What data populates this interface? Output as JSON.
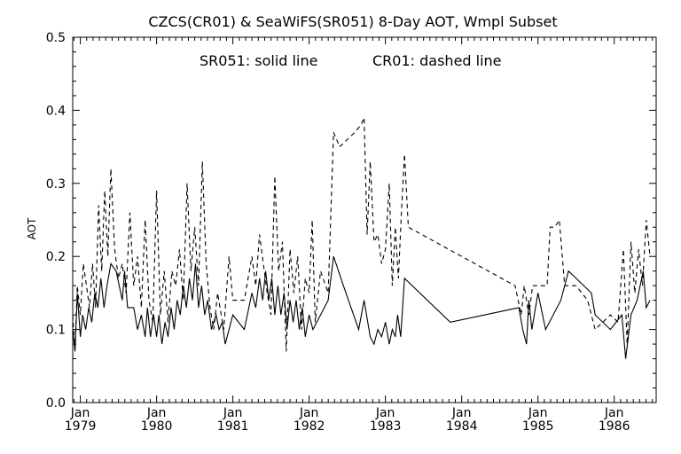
{
  "chart_data": {
    "type": "line",
    "title": "CZCS(CR01) & SeaWiFS(SR051) 8-Day AOT, Wmpl Subset",
    "annotation": {
      "solid": "SR051: solid line",
      "dashed": "CR01: dashed line"
    },
    "xlabel": "",
    "ylabel": "AOT",
    "xlim": [
      1978.9,
      1986.55
    ],
    "ylim": [
      0.0,
      0.5
    ],
    "grid": false,
    "x_ticks": [
      {
        "value": 1979.0,
        "month": "Jan",
        "year": "1979"
      },
      {
        "value": 1980.0,
        "month": "Jan",
        "year": "1980"
      },
      {
        "value": 1981.0,
        "month": "Jan",
        "year": "1981"
      },
      {
        "value": 1982.0,
        "month": "Jan",
        "year": "1982"
      },
      {
        "value": 1983.0,
        "month": "Jan",
        "year": "1983"
      },
      {
        "value": 1984.0,
        "month": "Jan",
        "year": "1984"
      },
      {
        "value": 1985.0,
        "month": "Jan",
        "year": "1985"
      },
      {
        "value": 1986.0,
        "month": "Jan",
        "year": "1986"
      }
    ],
    "y_ticks": [
      {
        "value": 0.0,
        "label": "0.0"
      },
      {
        "value": 0.1,
        "label": "0.1"
      },
      {
        "value": 0.2,
        "label": "0.2"
      },
      {
        "value": 0.3,
        "label": "0.3"
      },
      {
        "value": 0.4,
        "label": "0.4"
      },
      {
        "value": 0.5,
        "label": "0.5"
      }
    ],
    "series": [
      {
        "name": "SR051",
        "style": "solid",
        "color": "#000000",
        "points": [
          [
            1978.9,
            0.1
          ],
          [
            1978.93,
            0.07
          ],
          [
            1978.96,
            0.15
          ],
          [
            1979.0,
            0.09
          ],
          [
            1979.03,
            0.12
          ],
          [
            1979.07,
            0.1
          ],
          [
            1979.11,
            0.13
          ],
          [
            1979.15,
            0.11
          ],
          [
            1979.19,
            0.15
          ],
          [
            1979.23,
            0.13
          ],
          [
            1979.27,
            0.17
          ],
          [
            1979.31,
            0.13
          ],
          [
            1979.35,
            0.16
          ],
          [
            1979.4,
            0.19
          ],
          [
            1979.47,
            0.18
          ],
          [
            1979.55,
            0.14
          ],
          [
            1979.58,
            0.18
          ],
          [
            1979.62,
            0.13
          ],
          [
            1979.7,
            0.13
          ],
          [
            1979.75,
            0.1
          ],
          [
            1979.8,
            0.12
          ],
          [
            1979.85,
            0.09
          ],
          [
            1979.88,
            0.13
          ],
          [
            1979.92,
            0.09
          ],
          [
            1979.96,
            0.12
          ],
          [
            1980.0,
            0.09
          ],
          [
            1980.03,
            0.12
          ],
          [
            1980.07,
            0.08
          ],
          [
            1980.11,
            0.11
          ],
          [
            1980.15,
            0.09
          ],
          [
            1980.19,
            0.13
          ],
          [
            1980.23,
            0.1
          ],
          [
            1980.27,
            0.14
          ],
          [
            1980.31,
            0.12
          ],
          [
            1980.35,
            0.16
          ],
          [
            1980.39,
            0.13
          ],
          [
            1980.43,
            0.17
          ],
          [
            1980.47,
            0.14
          ],
          [
            1980.51,
            0.19
          ],
          [
            1980.55,
            0.13
          ],
          [
            1980.59,
            0.16
          ],
          [
            1980.63,
            0.12
          ],
          [
            1980.67,
            0.14
          ],
          [
            1980.72,
            0.1
          ],
          [
            1980.78,
            0.12
          ],
          [
            1980.82,
            0.1
          ],
          [
            1980.86,
            0.11
          ],
          [
            1980.9,
            0.08
          ],
          [
            1980.95,
            0.1
          ],
          [
            1981.0,
            0.12
          ],
          [
            1981.15,
            0.1
          ],
          [
            1981.25,
            0.15
          ],
          [
            1981.3,
            0.13
          ],
          [
            1981.35,
            0.17
          ],
          [
            1981.39,
            0.14
          ],
          [
            1981.43,
            0.18
          ],
          [
            1981.47,
            0.14
          ],
          [
            1981.51,
            0.17
          ],
          [
            1981.55,
            0.12
          ],
          [
            1981.59,
            0.16
          ],
          [
            1981.63,
            0.12
          ],
          [
            1981.67,
            0.15
          ],
          [
            1981.71,
            0.1
          ],
          [
            1981.75,
            0.14
          ],
          [
            1981.79,
            0.11
          ],
          [
            1981.83,
            0.14
          ],
          [
            1981.87,
            0.1
          ],
          [
            1981.91,
            0.13
          ],
          [
            1981.95,
            0.09
          ],
          [
            1982.0,
            0.12
          ],
          [
            1982.05,
            0.1
          ],
          [
            1982.15,
            0.12
          ],
          [
            1982.25,
            0.14
          ],
          [
            1982.32,
            0.2
          ],
          [
            1982.45,
            0.16
          ],
          [
            1982.55,
            0.13
          ],
          [
            1982.65,
            0.1
          ],
          [
            1982.72,
            0.14
          ],
          [
            1982.8,
            0.09
          ],
          [
            1982.85,
            0.08
          ],
          [
            1982.9,
            0.1
          ],
          [
            1982.95,
            0.09
          ],
          [
            1983.0,
            0.11
          ],
          [
            1983.05,
            0.08
          ],
          [
            1983.09,
            0.1
          ],
          [
            1983.13,
            0.09
          ],
          [
            1983.16,
            0.12
          ],
          [
            1983.2,
            0.09
          ],
          [
            1983.25,
            0.17
          ],
          [
            1983.85,
            0.11
          ],
          [
            1984.75,
            0.13
          ],
          [
            1984.8,
            0.1
          ],
          [
            1984.85,
            0.08
          ],
          [
            1984.88,
            0.14
          ],
          [
            1984.92,
            0.1
          ],
          [
            1985.0,
            0.15
          ],
          [
            1985.1,
            0.1
          ],
          [
            1985.3,
            0.14
          ],
          [
            1985.4,
            0.18
          ],
          [
            1985.5,
            0.17
          ],
          [
            1985.7,
            0.15
          ],
          [
            1985.75,
            0.12
          ],
          [
            1985.95,
            0.1
          ],
          [
            1986.1,
            0.12
          ],
          [
            1986.15,
            0.06
          ],
          [
            1986.22,
            0.12
          ],
          [
            1986.3,
            0.14
          ],
          [
            1986.38,
            0.18
          ],
          [
            1986.42,
            0.13
          ],
          [
            1986.47,
            0.14
          ]
        ]
      },
      {
        "name": "CR01",
        "style": "dashed",
        "color": "#000000",
        "points": [
          [
            1978.9,
            0.12
          ],
          [
            1978.93,
            0.07
          ],
          [
            1978.96,
            0.16
          ],
          [
            1979.0,
            0.12
          ],
          [
            1979.04,
            0.19
          ],
          [
            1979.08,
            0.16
          ],
          [
            1979.12,
            0.13
          ],
          [
            1979.16,
            0.19
          ],
          [
            1979.2,
            0.13
          ],
          [
            1979.24,
            0.27
          ],
          [
            1979.28,
            0.18
          ],
          [
            1979.32,
            0.29
          ],
          [
            1979.36,
            0.2
          ],
          [
            1979.4,
            0.32
          ],
          [
            1979.45,
            0.21
          ],
          [
            1979.5,
            0.17
          ],
          [
            1979.55,
            0.19
          ],
          [
            1979.6,
            0.15
          ],
          [
            1979.65,
            0.26
          ],
          [
            1979.7,
            0.16
          ],
          [
            1979.75,
            0.2
          ],
          [
            1979.8,
            0.13
          ],
          [
            1979.85,
            0.25
          ],
          [
            1979.9,
            0.14
          ],
          [
            1979.95,
            0.11
          ],
          [
            1980.0,
            0.29
          ],
          [
            1980.05,
            0.12
          ],
          [
            1980.1,
            0.18
          ],
          [
            1980.15,
            0.11
          ],
          [
            1980.2,
            0.18
          ],
          [
            1980.25,
            0.16
          ],
          [
            1980.3,
            0.21
          ],
          [
            1980.35,
            0.14
          ],
          [
            1980.4,
            0.3
          ],
          [
            1980.45,
            0.18
          ],
          [
            1980.5,
            0.24
          ],
          [
            1980.55,
            0.16
          ],
          [
            1980.6,
            0.33
          ],
          [
            1980.65,
            0.19
          ],
          [
            1980.7,
            0.13
          ],
          [
            1980.75,
            0.1
          ],
          [
            1980.8,
            0.15
          ],
          [
            1980.88,
            0.1
          ],
          [
            1980.95,
            0.2
          ],
          [
            1981.0,
            0.14
          ],
          [
            1981.15,
            0.14
          ],
          [
            1981.25,
            0.2
          ],
          [
            1981.3,
            0.16
          ],
          [
            1981.35,
            0.23
          ],
          [
            1981.4,
            0.19
          ],
          [
            1981.45,
            0.15
          ],
          [
            1981.5,
            0.12
          ],
          [
            1981.55,
            0.31
          ],
          [
            1981.6,
            0.18
          ],
          [
            1981.65,
            0.22
          ],
          [
            1981.7,
            0.07
          ],
          [
            1981.75,
            0.21
          ],
          [
            1981.8,
            0.15
          ],
          [
            1981.85,
            0.2
          ],
          [
            1981.9,
            0.1
          ],
          [
            1981.95,
            0.17
          ],
          [
            1982.0,
            0.15
          ],
          [
            1982.04,
            0.25
          ],
          [
            1982.08,
            0.11
          ],
          [
            1982.15,
            0.18
          ],
          [
            1982.25,
            0.15
          ],
          [
            1982.32,
            0.37
          ],
          [
            1982.4,
            0.35
          ],
          [
            1982.5,
            0.36
          ],
          [
            1982.6,
            0.37
          ],
          [
            1982.68,
            0.38
          ],
          [
            1982.72,
            0.39
          ],
          [
            1982.76,
            0.23
          ],
          [
            1982.8,
            0.33
          ],
          [
            1982.85,
            0.22
          ],
          [
            1982.9,
            0.23
          ],
          [
            1982.95,
            0.19
          ],
          [
            1983.0,
            0.21
          ],
          [
            1983.05,
            0.3
          ],
          [
            1983.09,
            0.16
          ],
          [
            1983.13,
            0.24
          ],
          [
            1983.17,
            0.17
          ],
          [
            1983.21,
            0.26
          ],
          [
            1983.25,
            0.34
          ],
          [
            1983.3,
            0.24
          ],
          [
            1984.7,
            0.16
          ],
          [
            1984.78,
            0.12
          ],
          [
            1984.82,
            0.16
          ],
          [
            1984.88,
            0.12
          ],
          [
            1984.93,
            0.16
          ],
          [
            1985.0,
            0.16
          ],
          [
            1985.12,
            0.16
          ],
          [
            1985.16,
            0.24
          ],
          [
            1985.22,
            0.24
          ],
          [
            1985.28,
            0.25
          ],
          [
            1985.35,
            0.16
          ],
          [
            1985.5,
            0.16
          ],
          [
            1985.65,
            0.14
          ],
          [
            1985.75,
            0.1
          ],
          [
            1985.95,
            0.12
          ],
          [
            1986.05,
            0.11
          ],
          [
            1986.12,
            0.21
          ],
          [
            1986.17,
            0.08
          ],
          [
            1986.22,
            0.22
          ],
          [
            1986.27,
            0.15
          ],
          [
            1986.32,
            0.21
          ],
          [
            1986.37,
            0.16
          ],
          [
            1986.42,
            0.25
          ],
          [
            1986.47,
            0.2
          ]
        ]
      }
    ]
  }
}
